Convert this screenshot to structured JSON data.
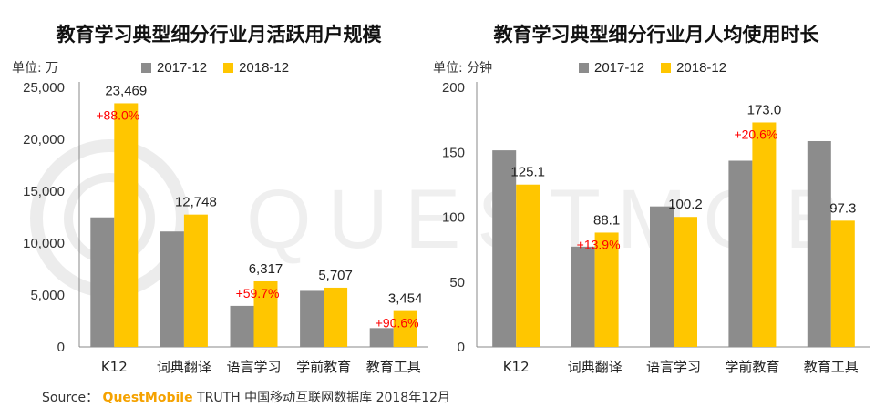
{
  "colors": {
    "series1": "#8c8c8c",
    "series2": "#ffc600",
    "annotation": "#ff0000",
    "axis": "#888888"
  },
  "watermark": {
    "text": "QUESTMOBILE"
  },
  "source": {
    "prefix": "Source：",
    "brand": "QuestMobile",
    "rest": "TRUTH 中国移动互联网数据库 2018年12月"
  },
  "chart_data": [
    {
      "type": "bar",
      "title": "教育学习典型细分行业月活跃用户规模",
      "unit_label": "单位: 万",
      "categories": [
        "K12",
        "词典翻译",
        "语言学习",
        "学前教育",
        "教育工具"
      ],
      "series": [
        {
          "name": "2017-12",
          "values": [
            12480,
            11120,
            3956,
            5400,
            1812
          ]
        },
        {
          "name": "2018-12",
          "values": [
            23469,
            12748,
            6317,
            5707,
            3454
          ]
        }
      ],
      "value_labels": [
        "23,469",
        "12,748",
        "6,317",
        "5,707",
        "3,454"
      ],
      "growth_labels": [
        "+88.0%",
        "",
        "+59.7%",
        "",
        "+90.6%"
      ],
      "yticks": [
        0,
        5000,
        10000,
        15000,
        20000,
        25000
      ],
      "ytick_labels": [
        "0",
        "5,000",
        "10,000",
        "15,000",
        "20,000",
        "25,000"
      ],
      "ylim": [
        0,
        25000
      ],
      "legend": "top"
    },
    {
      "type": "bar",
      "title": "教育学习典型细分行业月人均使用时长",
      "unit_label": "单位: 分钟",
      "categories": [
        "K12",
        "词典翻译",
        "语言学习",
        "学前教育",
        "教育工具"
      ],
      "series": [
        {
          "name": "2017-12",
          "values": [
            151.5,
            77.3,
            108.3,
            143.5,
            158.6
          ]
        },
        {
          "name": "2018-12",
          "values": [
            125.1,
            88.1,
            100.2,
            173.0,
            97.3
          ]
        }
      ],
      "value_labels": [
        "125.1",
        "88.1",
        "100.2",
        "173.0",
        "97.3"
      ],
      "growth_labels": [
        "",
        "+13.9%",
        "",
        "+20.6%",
        ""
      ],
      "yticks": [
        0,
        50,
        100,
        150,
        200
      ],
      "ytick_labels": [
        "0",
        "50",
        "100",
        "150",
        "200"
      ],
      "ylim": [
        0,
        200
      ],
      "legend": "top"
    }
  ]
}
